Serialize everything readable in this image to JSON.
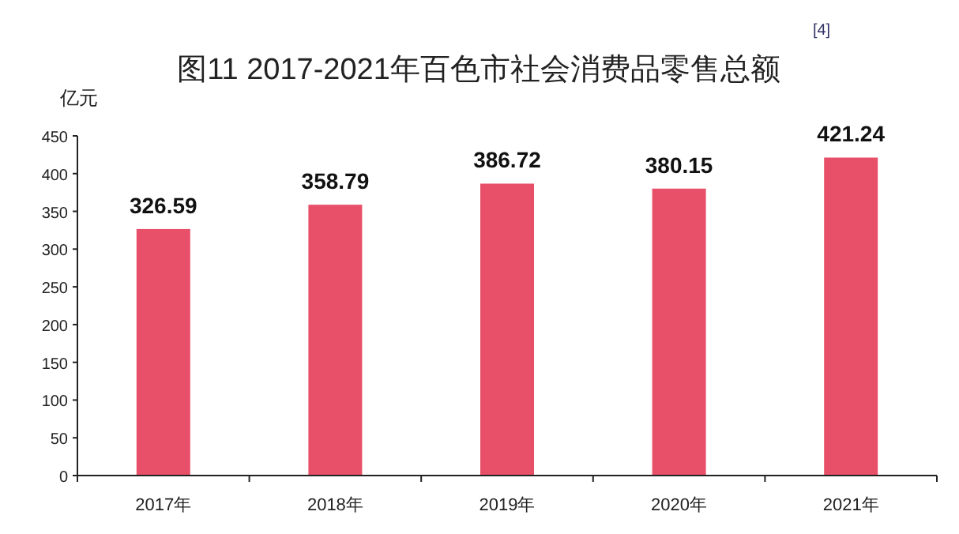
{
  "chart_data": {
    "type": "bar",
    "title": "图11 2017-2021年百色市社会消费品零售总额",
    "ylabel": "亿元",
    "annotations": [
      "[4]"
    ],
    "categories": [
      "2017年",
      "2018年",
      "2019年",
      "2020年",
      "2021年"
    ],
    "values": [
      326.59,
      358.79,
      386.72,
      380.15,
      421.24
    ],
    "color": "#e8506a",
    "ylim": [
      0,
      450
    ],
    "yticks": [
      0,
      50,
      100,
      150,
      200,
      250,
      300,
      350,
      400,
      450
    ],
    "data_labels": true
  }
}
